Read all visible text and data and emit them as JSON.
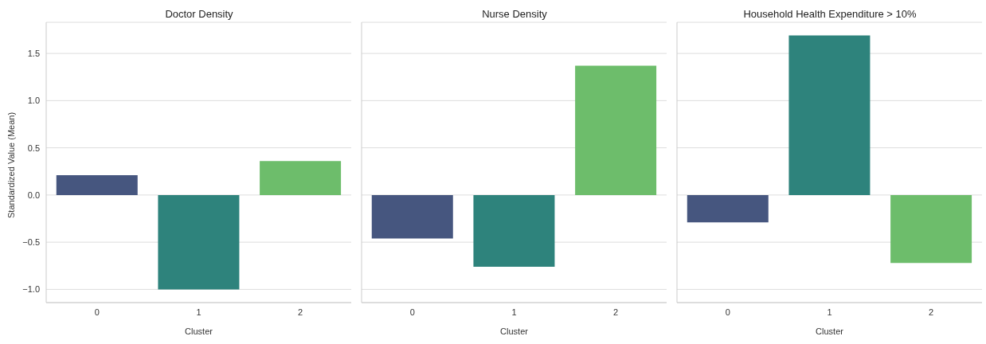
{
  "chart_data": [
    {
      "type": "bar",
      "title": "Doctor Density",
      "xlabel": "Cluster",
      "ylabel": "Standardized Value (Mean)",
      "categories": [
        "0",
        "1",
        "2"
      ],
      "values": [
        0.21,
        -1.0,
        0.36
      ],
      "colors": [
        "#46567f",
        "#2e837c",
        "#6dbd6b"
      ],
      "ylim": [
        -1.14,
        1.83
      ],
      "yticks": [
        {
          "value": -1,
          "label": "−1.0"
        },
        {
          "value": -0.5,
          "label": "−0.5"
        },
        {
          "value": 0,
          "label": "0.0"
        },
        {
          "value": 0.5,
          "label": "0.5"
        },
        {
          "value": 1,
          "label": "1.0"
        },
        {
          "value": 1.5,
          "label": "1.5"
        }
      ],
      "grid": "y"
    },
    {
      "type": "bar",
      "title": "Nurse Density",
      "xlabel": "Cluster",
      "categories": [
        "0",
        "1",
        "2"
      ],
      "values": [
        -0.46,
        -0.76,
        1.37
      ],
      "colors": [
        "#46567f",
        "#2e837c",
        "#6dbd6b"
      ],
      "ylim": [
        -1.14,
        1.83
      ],
      "yticks": [
        -1,
        -0.5,
        0,
        0.5,
        1,
        1.5
      ],
      "grid": "y",
      "tick_labels": "x"
    },
    {
      "type": "bar",
      "title": "Household Health Expenditure > 10%",
      "xlabel": "Cluster",
      "categories": [
        "0",
        "1",
        "2"
      ],
      "values": [
        -0.29,
        1.69,
        -0.72
      ],
      "colors": [
        "#46567f",
        "#2e837c",
        "#6dbd6b"
      ],
      "ylim": [
        -1.14,
        1.83
      ],
      "yticks": [
        -1,
        -0.5,
        0,
        0.5,
        1,
        1.5
      ],
      "grid": "y",
      "tick_labels": "x"
    }
  ]
}
